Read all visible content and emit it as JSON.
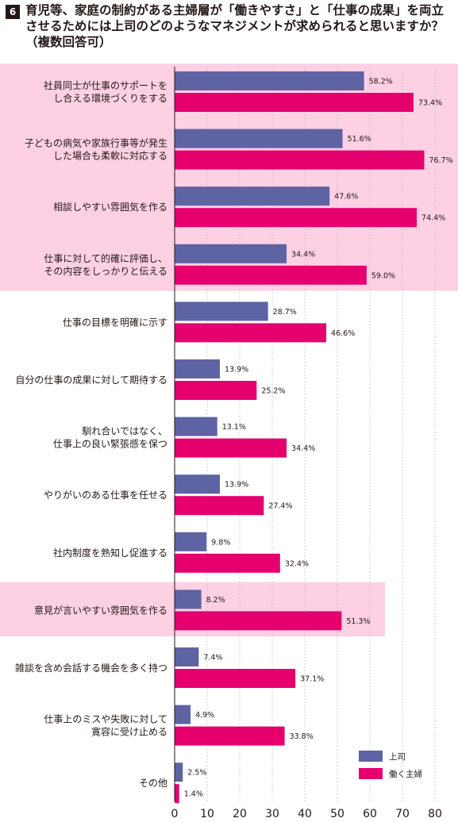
{
  "header": {
    "number": "6",
    "title_lines": [
      "育児等、家庭の制約がある主婦層が「働きやすさ」と「仕事の成果」を両立",
      "させるためには上司のどのようなマネジメントが求められると思いますか？",
      "（複数回答可）"
    ]
  },
  "colors": {
    "boss": "#5d63a3",
    "housewife": "#e5006e",
    "highlight": "#fdd0e4"
  },
  "chart_data": {
    "type": "bar",
    "orientation": "horizontal",
    "categories": [
      [
        "社員同士が仕事のサポートを",
        "し合える環境づくりをする"
      ],
      [
        "子どもの病気や家族行事等が発生",
        "した場合も柔軟に対応する"
      ],
      [
        "相談しやすい雰囲気を作る"
      ],
      [
        "仕事に対して的確に評価し、",
        "その内容をしっかりと伝える"
      ],
      [
        "仕事の目標を明確に示す"
      ],
      [
        "自分の仕事の成果に対して期待する"
      ],
      [
        "馴れ合いではなく、",
        "仕事上の良い緊張感を保つ"
      ],
      [
        "やりがいのある仕事を任せる"
      ],
      [
        "社内制度を熟知し促進する"
      ],
      [
        "意見が言いやすい雰囲気を作る"
      ],
      [
        "雑談を含め会話する機会を多く持つ"
      ],
      [
        "仕事上のミスや失敗に対して",
        "寛容に受け止める"
      ],
      [
        "その他"
      ]
    ],
    "series": [
      {
        "name": "上司",
        "values": [
          58.2,
          51.6,
          47.6,
          34.4,
          28.7,
          13.9,
          13.1,
          13.9,
          9.8,
          8.2,
          7.4,
          4.9,
          2.5
        ]
      },
      {
        "name": "働く主婦",
        "values": [
          73.4,
          76.7,
          74.4,
          59.0,
          46.6,
          25.2,
          34.4,
          27.4,
          32.4,
          51.3,
          37.1,
          33.8,
          1.4
        ]
      }
    ],
    "value_labels": [
      [
        "58.2%",
        "51.6%",
        "47.6%",
        "34.4%",
        "28.7%",
        "13.9%",
        "13.1%",
        "13.9%",
        "9.8%",
        "8.2%",
        "7.4%",
        "4.9%",
        "2.5%"
      ],
      [
        "73.4%",
        "76.7%",
        "74.4%",
        "59.0%",
        "46.6%",
        "25.2%",
        "34.4%",
        "27.4%",
        "32.4%",
        "51.3%",
        "37.1%",
        "33.8%",
        "1.4%"
      ]
    ],
    "xlim": [
      0,
      80
    ],
    "xticks": [
      0,
      10,
      20,
      30,
      40,
      50,
      60,
      70,
      80
    ],
    "grid": true,
    "legend_position": "bottom-right",
    "highlight_groups": [
      [
        0,
        3
      ],
      [
        9,
        9
      ]
    ]
  }
}
